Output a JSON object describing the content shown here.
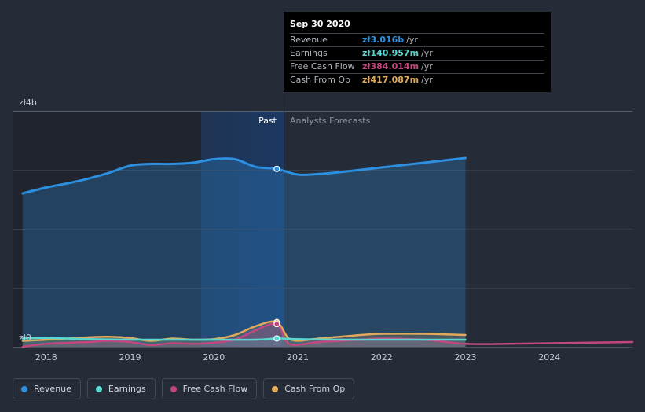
{
  "chart_data": {
    "type": "area",
    "y_axis": {
      "min": 0,
      "max": 4,
      "labels": [
        "zł4b",
        "zł0"
      ]
    },
    "x_ticks": [
      "2018",
      "2019",
      "2020",
      "2021",
      "2022",
      "2023",
      "2024"
    ],
    "x_range": [
      2017.6,
      2024.99
    ],
    "past_start": 2019.75,
    "divider": 2020.75,
    "past_label": "Past",
    "forecast_label": "Analysts Forecasts",
    "colors": {
      "revenue": "#2d8fe0",
      "earnings": "#5ad6d0",
      "free_cash_flow": "#c4467f",
      "cash_from_op": "#e0aa5a"
    },
    "series": [
      {
        "name": "Revenue",
        "key": "revenue",
        "x": [
          2017.72,
          2018.0,
          2018.25,
          2018.5,
          2018.75,
          2019.0,
          2019.25,
          2019.5,
          2019.75,
          2020.0,
          2020.25,
          2020.5,
          2020.75,
          2021.0,
          2021.25,
          2021.5,
          2021.75,
          2022.0,
          2022.5,
          2023.0
        ],
        "values": [
          2.6,
          2.7,
          2.77,
          2.85,
          2.95,
          3.07,
          3.1,
          3.1,
          3.12,
          3.18,
          3.18,
          3.05,
          3.016,
          2.92,
          2.93,
          2.96,
          3.0,
          3.04,
          3.12,
          3.2
        ]
      },
      {
        "name": "Earnings",
        "key": "earnings",
        "x": [
          2017.72,
          2018.0,
          2018.5,
          2019.0,
          2019.5,
          2020.0,
          2020.5,
          2020.75,
          2021.0,
          2021.5,
          2022.0,
          2022.5,
          2023.0
        ],
        "values": [
          0.14,
          0.15,
          0.13,
          0.12,
          0.12,
          0.12,
          0.12,
          0.141,
          0.13,
          0.12,
          0.12,
          0.12,
          0.12
        ]
      },
      {
        "name": "Free Cash Flow",
        "key": "free_cash_flow",
        "x": [
          2017.72,
          2018.0,
          2018.5,
          2018.75,
          2019.0,
          2019.25,
          2019.5,
          2019.75,
          2020.0,
          2020.25,
          2020.5,
          2020.75,
          2020.9,
          2021.25,
          2021.75,
          2022.0,
          2022.5,
          2023.0,
          2023.5,
          2024.0,
          2024.5,
          2024.99
        ],
        "values": [
          0.0,
          0.05,
          0.08,
          0.1,
          0.08,
          0.03,
          0.06,
          0.05,
          0.07,
          0.12,
          0.28,
          0.384,
          0.05,
          0.08,
          0.12,
          0.14,
          0.12,
          0.05,
          0.05,
          0.06,
          0.07,
          0.08
        ]
      },
      {
        "name": "Cash From Op",
        "key": "cash_from_op",
        "x": [
          2017.72,
          2018.0,
          2018.5,
          2018.75,
          2019.0,
          2019.25,
          2019.5,
          2019.75,
          2020.0,
          2020.25,
          2020.5,
          2020.75,
          2020.92,
          2021.25,
          2021.75,
          2022.0,
          2022.5,
          2023.0
        ],
        "values": [
          0.1,
          0.12,
          0.16,
          0.17,
          0.15,
          0.1,
          0.14,
          0.12,
          0.13,
          0.2,
          0.35,
          0.417,
          0.12,
          0.14,
          0.2,
          0.22,
          0.22,
          0.2
        ]
      }
    ]
  },
  "tooltip": {
    "date": "Sep 30 2020",
    "rows": [
      {
        "label": "Revenue",
        "value": "zł3.016b",
        "unit": "/yr"
      },
      {
        "label": "Earnings",
        "value": "zł140.957m",
        "unit": "/yr"
      },
      {
        "label": "Free Cash Flow",
        "value": "zł384.014m",
        "unit": "/yr"
      },
      {
        "label": "Cash From Op",
        "value": "zł417.087m",
        "unit": "/yr"
      }
    ]
  },
  "legend": [
    {
      "label": "Revenue",
      "color": "#2d8fe0"
    },
    {
      "label": "Earnings",
      "color": "#5ad6d0"
    },
    {
      "label": "Free Cash Flow",
      "color": "#c4467f"
    },
    {
      "label": "Cash From Op",
      "color": "#e0aa5a"
    }
  ]
}
